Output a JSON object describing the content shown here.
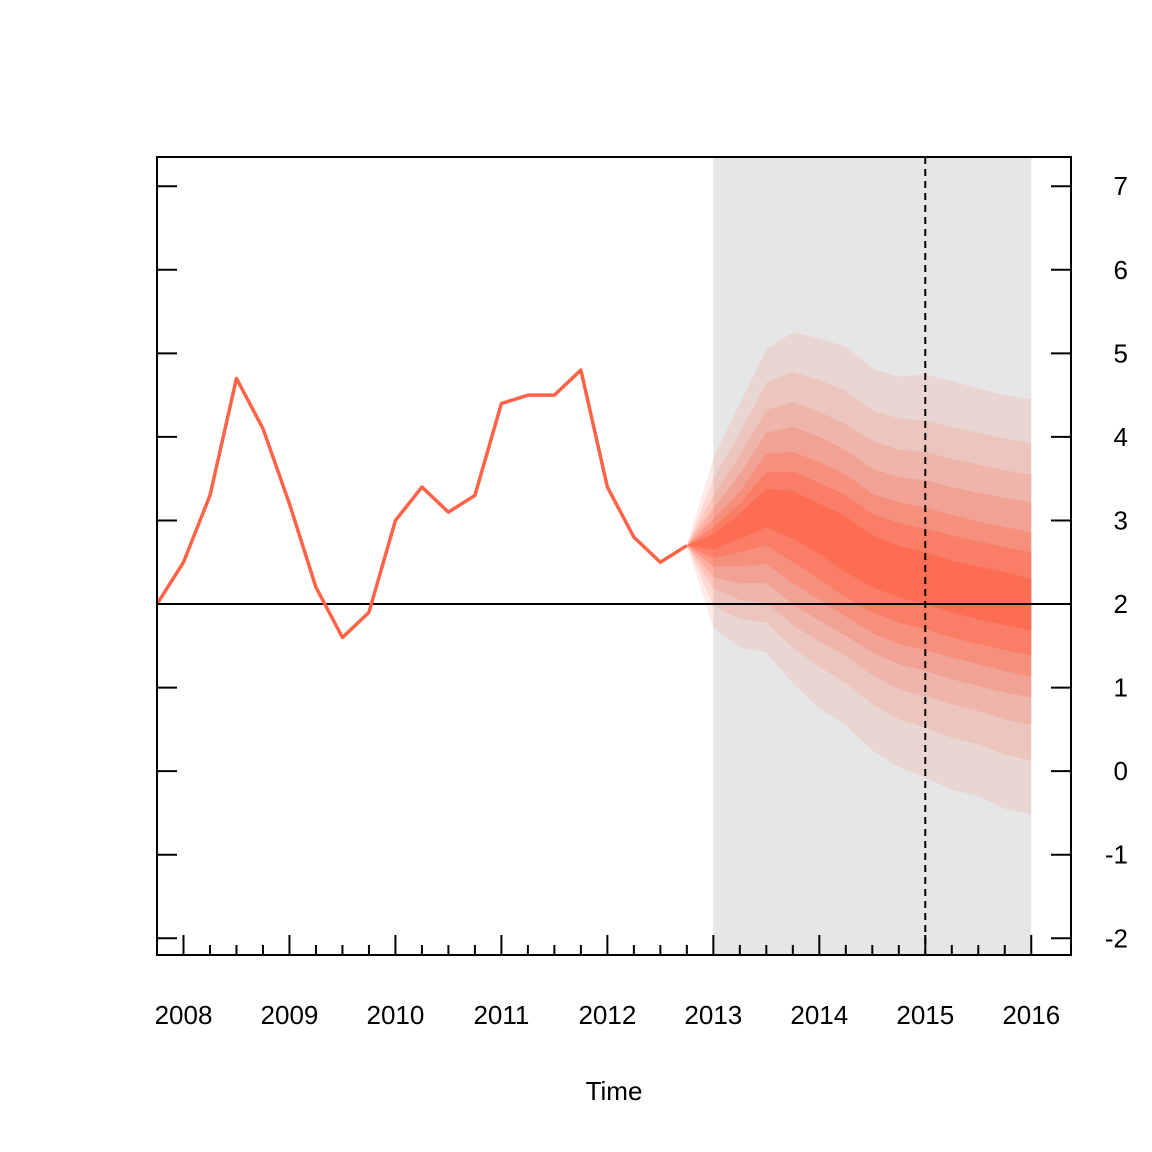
{
  "chart_data": {
    "type": "line",
    "title": "",
    "xlabel": "Time",
    "ylabel": "",
    "xlim": [
      2007.75,
      2016.375
    ],
    "ylim": [
      -2.2,
      7.35
    ],
    "y_axis_side": "right",
    "x_ticks": [
      2008,
      2009,
      2010,
      2011,
      2012,
      2013,
      2014,
      2015,
      2016
    ],
    "x_tick_labels": [
      "2008",
      "2009",
      "2010",
      "2011",
      "2012",
      "2013",
      "2014",
      "2015",
      "2016"
    ],
    "y_ticks": [
      7,
      6,
      5,
      4,
      3,
      2,
      1,
      0,
      -1,
      -2
    ],
    "y_tick_labels": [
      "7",
      "6",
      "5",
      "4",
      "3",
      "2",
      "1",
      "0",
      "-1",
      "-2"
    ],
    "reference_line_y": 2,
    "forecast_start_x": 2013.0,
    "forecast_region": [
      2013.0,
      2016.0
    ],
    "dashed_marker_x": 2015.0,
    "series": [
      {
        "kind": "history",
        "color": "#ff6347",
        "points": [
          [
            2007.75,
            2.0
          ],
          [
            2008.0,
            2.5
          ],
          [
            2008.25,
            3.3
          ],
          [
            2008.5,
            4.7
          ],
          [
            2008.75,
            4.1
          ],
          [
            2009.0,
            3.2
          ],
          [
            2009.25,
            2.2
          ],
          [
            2009.5,
            1.6
          ],
          [
            2009.75,
            1.9
          ],
          [
            2010.0,
            3.0
          ],
          [
            2010.25,
            3.4
          ],
          [
            2010.5,
            3.1
          ],
          [
            2010.75,
            3.3
          ],
          [
            2011.0,
            4.4
          ],
          [
            2011.25,
            4.5
          ],
          [
            2011.5,
            4.5
          ],
          [
            2011.75,
            4.8
          ],
          [
            2012.0,
            3.4
          ],
          [
            2012.25,
            2.8
          ],
          [
            2012.5,
            2.5
          ],
          [
            2012.75,
            2.7
          ]
        ]
      }
    ],
    "fan": {
      "color": "#ff6347",
      "x": [
        2012.75,
        2013.0,
        2013.25,
        2013.5,
        2013.75,
        2014.0,
        2014.25,
        2014.5,
        2014.75,
        2015.0,
        2015.25,
        2015.5,
        2015.75,
        2016.0
      ],
      "median": [
        2.7,
        2.75,
        2.95,
        3.2,
        3.15,
        2.95,
        2.75,
        2.5,
        2.38,
        2.3,
        2.2,
        2.12,
        2.05,
        1.98
      ],
      "bands": [
        {
          "lower": [
            2.7,
            1.72,
            1.48,
            1.42,
            1.05,
            0.75,
            0.55,
            0.25,
            0.05,
            -0.08,
            -0.22,
            -0.3,
            -0.45,
            -0.52
          ],
          "upper": [
            2.7,
            3.75,
            4.4,
            5.05,
            5.25,
            5.18,
            5.08,
            4.82,
            4.72,
            4.75,
            4.67,
            4.58,
            4.5,
            4.45
          ]
        },
        {
          "lower": [
            2.7,
            1.98,
            1.82,
            1.78,
            1.48,
            1.25,
            1.05,
            0.8,
            0.62,
            0.52,
            0.4,
            0.32,
            0.2,
            0.12
          ],
          "upper": [
            2.7,
            3.5,
            4.05,
            4.65,
            4.78,
            4.68,
            4.55,
            4.32,
            4.22,
            4.2,
            4.12,
            4.05,
            3.98,
            3.93
          ]
        },
        {
          "lower": [
            2.7,
            2.18,
            2.05,
            2.02,
            1.75,
            1.55,
            1.38,
            1.15,
            0.98,
            0.9,
            0.8,
            0.72,
            0.62,
            0.55
          ],
          "upper": [
            2.7,
            3.3,
            3.78,
            4.32,
            4.42,
            4.3,
            4.15,
            3.95,
            3.85,
            3.82,
            3.74,
            3.67,
            3.6,
            3.55
          ]
        },
        {
          "lower": [
            2.7,
            2.32,
            2.25,
            2.25,
            2.0,
            1.8,
            1.62,
            1.42,
            1.28,
            1.2,
            1.1,
            1.02,
            0.94,
            0.88
          ],
          "upper": [
            2.7,
            3.15,
            3.55,
            4.05,
            4.12,
            4.0,
            3.84,
            3.62,
            3.52,
            3.48,
            3.4,
            3.33,
            3.27,
            3.22
          ]
        },
        {
          "lower": [
            2.7,
            2.45,
            2.45,
            2.48,
            2.25,
            2.05,
            1.85,
            1.65,
            1.52,
            1.45,
            1.36,
            1.28,
            1.2,
            1.13
          ],
          "upper": [
            2.7,
            3.02,
            3.35,
            3.8,
            3.82,
            3.7,
            3.55,
            3.32,
            3.22,
            3.15,
            3.07,
            2.99,
            2.92,
            2.86
          ]
        },
        {
          "lower": [
            2.7,
            2.55,
            2.62,
            2.7,
            2.5,
            2.3,
            2.08,
            1.9,
            1.78,
            1.7,
            1.6,
            1.52,
            1.45,
            1.38
          ],
          "upper": [
            2.7,
            2.92,
            3.2,
            3.58,
            3.58,
            3.45,
            3.3,
            3.08,
            2.97,
            2.9,
            2.82,
            2.75,
            2.68,
            2.62
          ]
        },
        {
          "lower": [
            2.7,
            2.65,
            2.78,
            2.92,
            2.78,
            2.6,
            2.38,
            2.2,
            2.08,
            2.0,
            1.9,
            1.82,
            1.75,
            1.68
          ],
          "upper": [
            2.7,
            2.84,
            3.08,
            3.38,
            3.35,
            3.2,
            3.05,
            2.82,
            2.7,
            2.62,
            2.52,
            2.45,
            2.38,
            2.3
          ]
        }
      ],
      "band_opacities": [
        0.12,
        0.14,
        0.17,
        0.22,
        0.3,
        0.42,
        0.6
      ]
    },
    "colors": {
      "series": "#ff6347",
      "forecast_shade": "#e6e6e6",
      "axis": "#000000"
    }
  }
}
